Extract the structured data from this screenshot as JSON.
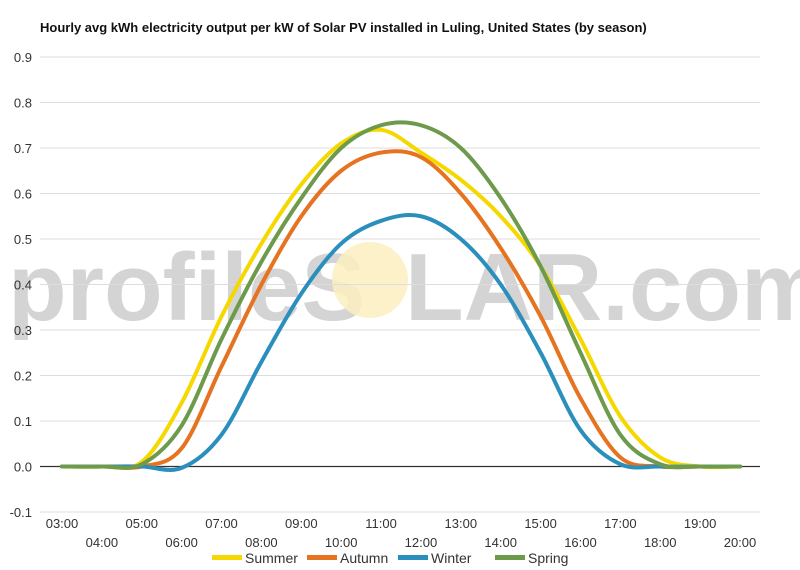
{
  "chart_data": {
    "type": "line",
    "title": "Hourly avg kWh electricity output per kW of Solar PV installed in Luling, United States (by season)",
    "xlabel": "",
    "ylabel": "",
    "watermark": {
      "left": "profileS",
      "right": "LAR.com"
    },
    "ylim": [
      -0.1,
      0.9
    ],
    "yticks": [
      "0.9",
      "0.8",
      "0.7",
      "0.6",
      "0.5",
      "0.4",
      "0.3",
      "0.2",
      "0.1",
      "0.0",
      "-0.1"
    ],
    "yticks_values": [
      0.9,
      0.8,
      0.7,
      0.6,
      0.5,
      0.4,
      0.3,
      0.2,
      0.1,
      0.0,
      -0.1
    ],
    "categories": [
      "03:00",
      "04:00",
      "05:00",
      "06:00",
      "07:00",
      "08:00",
      "09:00",
      "10:00",
      "11:00",
      "12:00",
      "13:00",
      "14:00",
      "15:00",
      "16:00",
      "17:00",
      "18:00",
      "19:00",
      "20:00"
    ],
    "grid": true,
    "legend_position": "bottom",
    "series": [
      {
        "name": "Summer",
        "color": "#f5d800",
        "values": [
          0,
          0,
          0.01,
          0.14,
          0.33,
          0.49,
          0.62,
          0.71,
          0.74,
          0.69,
          0.63,
          0.55,
          0.44,
          0.28,
          0.11,
          0.02,
          0.0,
          0.0
        ]
      },
      {
        "name": "Autumn",
        "color": "#e67320",
        "values": [
          0,
          0,
          0,
          0.04,
          0.22,
          0.4,
          0.55,
          0.65,
          0.69,
          0.68,
          0.6,
          0.48,
          0.33,
          0.15,
          0.02,
          0.0,
          0.0,
          0.0
        ]
      },
      {
        "name": "Winter",
        "color": "#2a8fbd",
        "values": [
          0,
          0,
          0,
          -0.003,
          0.07,
          0.23,
          0.38,
          0.49,
          0.54,
          0.55,
          0.5,
          0.4,
          0.25,
          0.08,
          0.005,
          0.0,
          0.0,
          0.0
        ]
      },
      {
        "name": "Spring",
        "color": "#6d9a4b",
        "values": [
          0,
          0,
          0.005,
          0.09,
          0.28,
          0.45,
          0.59,
          0.7,
          0.75,
          0.75,
          0.7,
          0.59,
          0.44,
          0.25,
          0.07,
          0.005,
          0.0,
          0.0
        ]
      }
    ]
  }
}
